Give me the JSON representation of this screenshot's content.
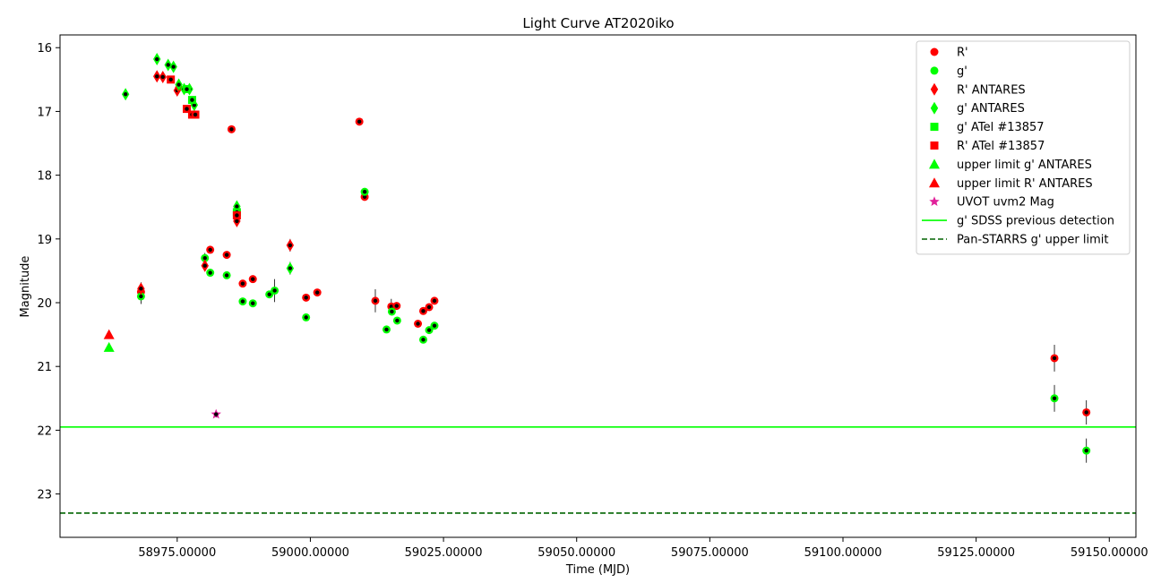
{
  "chart_data": {
    "type": "scatter",
    "title": "Light Curve AT2020iko",
    "xlabel": "Time (MJD)",
    "ylabel": "Magnitude",
    "xlim": [
      58953,
      59155
    ],
    "ylim": [
      23.68,
      15.8
    ],
    "y_inverted": true,
    "grid": false,
    "legend_position": "top-right",
    "x_ticks": [
      58975,
      59000,
      59025,
      59050,
      59075,
      59100,
      59125,
      59150
    ],
    "x_tick_labels": [
      "58975.00000",
      "59000.00000",
      "59025.00000",
      "59050.00000",
      "59075.00000",
      "59100.00000",
      "59125.00000",
      "59150.00000"
    ],
    "y_ticks": [
      16,
      17,
      18,
      19,
      20,
      21,
      22,
      23
    ],
    "y_tick_labels": [
      "16",
      "17",
      "18",
      "19",
      "20",
      "21",
      "22",
      "23"
    ],
    "colors": {
      "red": "#ff0000",
      "green": "#00ff00",
      "dark_green": "#006400",
      "magenta": "#e0219a",
      "black": "#000000"
    },
    "series": [
      {
        "name": "R'",
        "marker": "circle",
        "color": "#ff0000",
        "points": [
          [
            58968.2,
            19.83,
            0.05
          ],
          [
            58981.2,
            19.17,
            0.05
          ],
          [
            58984.3,
            19.25,
            0.05
          ],
          [
            58985.2,
            17.28,
            0.05
          ],
          [
            58987.3,
            19.7,
            0.05
          ],
          [
            58989.2,
            19.63,
            0.05
          ],
          [
            58999.2,
            19.92,
            0.05
          ],
          [
            59001.3,
            19.84,
            0.05
          ],
          [
            59009.2,
            17.16,
            0.05
          ],
          [
            59010.2,
            18.34,
            0.05
          ],
          [
            59012.2,
            19.97,
            0.18
          ],
          [
            59015.2,
            20.06,
            0.12
          ],
          [
            59016.2,
            20.05,
            0.06
          ],
          [
            59020.2,
            20.33,
            0.05
          ],
          [
            59021.2,
            20.13,
            0.05
          ],
          [
            59022.3,
            20.07,
            0.05
          ],
          [
            59023.3,
            19.97,
            0.05
          ],
          [
            59139.7,
            20.87,
            0.21
          ],
          [
            59145.7,
            21.72,
            0.19
          ]
        ]
      },
      {
        "name": "g'",
        "marker": "circle",
        "color": "#00ff00",
        "points": [
          [
            58968.2,
            19.9,
            0.12
          ],
          [
            58980.2,
            19.3,
            0.08
          ],
          [
            58981.2,
            19.53,
            0.06
          ],
          [
            58984.3,
            19.57,
            0.05
          ],
          [
            58987.3,
            19.98,
            0.05
          ],
          [
            58989.2,
            20.01,
            0.05
          ],
          [
            58992.3,
            19.87,
            0.05
          ],
          [
            58993.3,
            19.81,
            0.18
          ],
          [
            58999.2,
            20.23,
            0.05
          ],
          [
            59010.2,
            18.26,
            0.05
          ],
          [
            59014.3,
            20.42,
            0.05
          ],
          [
            59015.3,
            20.14,
            0.05
          ],
          [
            59016.3,
            20.28,
            0.05
          ],
          [
            59021.2,
            20.58,
            0.05
          ],
          [
            59022.3,
            20.43,
            0.05
          ],
          [
            59023.3,
            20.36,
            0.05
          ],
          [
            59139.7,
            21.5,
            0.21
          ],
          [
            59145.7,
            22.32,
            0.19
          ]
        ]
      },
      {
        "name": "R' ANTARES",
        "marker": "diamond",
        "color": "#ff0000",
        "points": [
          [
            58968.2,
            19.78,
            0.1
          ],
          [
            58971.2,
            16.45,
            0.05
          ],
          [
            58972.3,
            16.46,
            0.05
          ],
          [
            58975.0,
            16.67,
            0.05
          ],
          [
            58975.3,
            16.62,
            0.05
          ],
          [
            58980.2,
            19.42,
            0.05
          ],
          [
            58986.2,
            18.72,
            0.08
          ],
          [
            58996.2,
            19.1,
            0.1
          ]
        ]
      },
      {
        "name": "g' ANTARES",
        "marker": "diamond",
        "color": "#00ff00",
        "points": [
          [
            58965.3,
            16.73,
            0.05
          ],
          [
            58971.2,
            16.18,
            0.08
          ],
          [
            58973.3,
            16.27,
            0.05
          ],
          [
            58974.3,
            16.3,
            0.05
          ],
          [
            58975.3,
            16.58,
            0.05
          ],
          [
            58976.3,
            16.65,
            0.05
          ],
          [
            58977.3,
            16.65,
            0.05
          ],
          [
            58978.2,
            16.9,
            0.05
          ],
          [
            58986.2,
            18.49,
            0.05
          ],
          [
            58996.2,
            19.46,
            0.1
          ]
        ]
      },
      {
        "name": "g' ATel #13857",
        "marker": "square",
        "color": "#00ff00",
        "points": [
          [
            58976.8,
            16.65,
            0.03
          ],
          [
            58977.8,
            16.82,
            0.03
          ],
          [
            58986.2,
            18.58,
            0.03
          ]
        ]
      },
      {
        "name": "R' ATel #13857",
        "marker": "square",
        "color": "#ff0000",
        "points": [
          [
            58973.8,
            16.5,
            0.03
          ],
          [
            58976.8,
            16.96,
            0.03
          ],
          [
            58977.8,
            17.05,
            0.03
          ],
          [
            58978.4,
            17.05,
            0.03
          ],
          [
            58986.2,
            18.63,
            0.03
          ]
        ]
      },
      {
        "name": "upper limit g' ANTARES",
        "marker": "triangle",
        "color": "#00ff00",
        "points": [
          [
            58962.2,
            20.7,
            0
          ]
        ]
      },
      {
        "name": "upper limit R' ANTARES",
        "marker": "triangle",
        "color": "#ff0000",
        "points": [
          [
            58962.2,
            20.5,
            0
          ]
        ]
      },
      {
        "name": "UVOT uvm2 Mag",
        "marker": "star",
        "color": "#e0219a",
        "points": [
          [
            58982.3,
            21.75,
            0.05
          ]
        ]
      }
    ],
    "lines": [
      {
        "name": "g' SDSS previous detection",
        "style": "solid",
        "color": "#00ff00",
        "y": 21.95
      },
      {
        "name": "Pan-STARRS g' upper limit",
        "style": "dashed",
        "color": "#006400",
        "y": 23.3
      }
    ]
  }
}
